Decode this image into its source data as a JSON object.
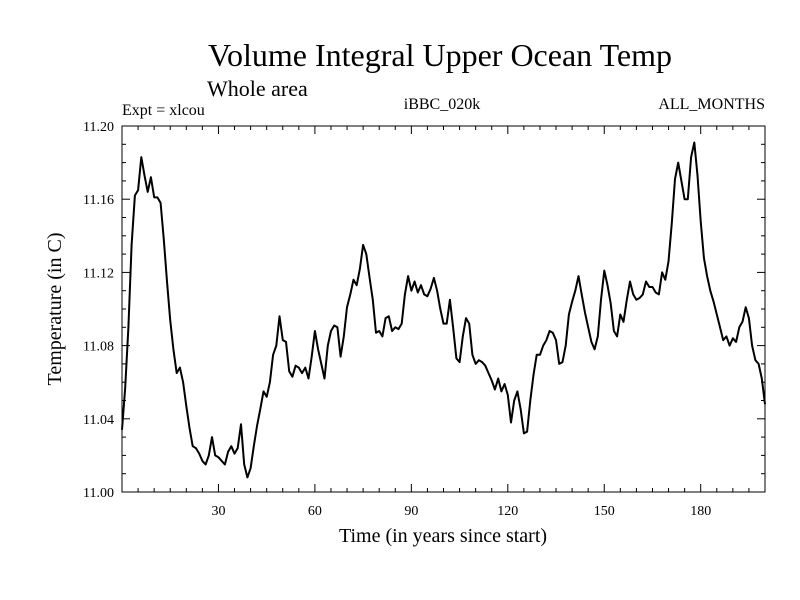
{
  "chart_data": {
    "type": "line",
    "title": "Volume Integral Upper Ocean Temp",
    "subtitle": "Whole area",
    "annotations": {
      "left": "Expt = xlcou",
      "center": "iBBC_020k",
      "right": "ALL_MONTHS"
    },
    "xlabel": "Time (in years since start)",
    "ylabel": "Temperature (in C)",
    "xlim": [
      0,
      200
    ],
    "ylim": [
      11.0,
      11.2
    ],
    "x_major_ticks": [
      30,
      60,
      90,
      120,
      150,
      180
    ],
    "x_tick_labels": [
      "30",
      "60",
      "90",
      "120",
      "150",
      "180"
    ],
    "x_minor_step": 5,
    "y_major_ticks": [
      11.0,
      11.04,
      11.08,
      11.12,
      11.16,
      11.2
    ],
    "y_tick_labels": [
      "11.00",
      "11.04",
      "11.08",
      "11.12",
      "11.16",
      "11.20"
    ],
    "y_minor_step": 0.01,
    "grid": false,
    "legend": "none",
    "series": [
      {
        "name": "Volume Integral Upper Ocean Temp",
        "x": [
          0,
          1,
          2,
          3,
          4,
          5,
          6,
          7,
          8,
          9,
          10,
          11,
          12,
          13,
          14,
          15,
          16,
          17,
          18,
          19,
          20,
          21,
          22,
          23,
          24,
          25,
          26,
          27,
          28,
          29,
          30,
          31,
          32,
          33,
          34,
          35,
          36,
          37,
          38,
          39,
          40,
          41,
          42,
          43,
          44,
          45,
          46,
          47,
          48,
          49,
          50,
          51,
          52,
          53,
          54,
          55,
          56,
          57,
          58,
          59,
          60,
          61,
          62,
          63,
          64,
          65,
          66,
          67,
          68,
          69,
          70,
          71,
          72,
          73,
          74,
          75,
          76,
          77,
          78,
          79,
          80,
          81,
          82,
          83,
          84,
          85,
          86,
          87,
          88,
          89,
          90,
          91,
          92,
          93,
          94,
          95,
          96,
          97,
          98,
          99,
          100,
          101,
          102,
          103,
          104,
          105,
          106,
          107,
          108,
          109,
          110,
          111,
          112,
          113,
          114,
          115,
          116,
          117,
          118,
          119,
          120,
          121,
          122,
          123,
          124,
          125,
          126,
          127,
          128,
          129,
          130,
          131,
          132,
          133,
          134,
          135,
          136,
          137,
          138,
          139,
          140,
          141,
          142,
          143,
          144,
          145,
          146,
          147,
          148,
          149,
          150,
          151,
          152,
          153,
          154,
          155,
          156,
          157,
          158,
          159,
          160,
          161,
          162,
          163,
          164,
          165,
          166,
          167,
          168,
          169,
          170,
          171,
          172,
          173,
          174,
          175,
          176,
          177,
          178,
          179,
          180,
          181,
          182,
          183,
          184,
          185,
          186,
          187,
          188,
          189,
          190,
          191,
          192,
          193,
          194,
          195,
          196,
          197,
          198,
          199,
          200
        ],
        "values": [
          11.034,
          11.057,
          11.09,
          11.135,
          11.162,
          11.165,
          11.183,
          11.173,
          11.164,
          11.172,
          11.161,
          11.161,
          11.158,
          11.138,
          11.115,
          11.094,
          11.078,
          11.065,
          11.068,
          11.06,
          11.047,
          11.035,
          11.025,
          11.024,
          11.021,
          11.017,
          11.015,
          11.02,
          11.03,
          11.02,
          11.019,
          11.017,
          11.015,
          11.022,
          11.025,
          11.021,
          11.024,
          11.037,
          11.015,
          11.008,
          11.013,
          11.025,
          11.036,
          11.045,
          11.055,
          11.052,
          11.06,
          11.075,
          11.08,
          11.096,
          11.083,
          11.082,
          11.066,
          11.063,
          11.069,
          11.068,
          11.065,
          11.068,
          11.062,
          11.074,
          11.088,
          11.078,
          11.07,
          11.062,
          11.08,
          11.088,
          11.091,
          11.09,
          11.074,
          11.085,
          11.101,
          11.108,
          11.116,
          11.113,
          11.122,
          11.135,
          11.13,
          11.117,
          11.105,
          11.087,
          11.088,
          11.085,
          11.095,
          11.096,
          11.088,
          11.09,
          11.089,
          11.092,
          11.108,
          11.118,
          11.11,
          11.115,
          11.109,
          11.113,
          11.108,
          11.107,
          11.111,
          11.117,
          11.11,
          11.1,
          11.092,
          11.092,
          11.105,
          11.09,
          11.073,
          11.071,
          11.085,
          11.095,
          11.092,
          11.075,
          11.07,
          11.072,
          11.071,
          11.069,
          11.065,
          11.061,
          11.056,
          11.062,
          11.055,
          11.059,
          11.053,
          11.038,
          11.05,
          11.055,
          11.045,
          11.032,
          11.033,
          11.05,
          11.064,
          11.075,
          11.075,
          11.08,
          11.083,
          11.088,
          11.087,
          11.083,
          11.07,
          11.071,
          11.08,
          11.097,
          11.104,
          11.11,
          11.118,
          11.108,
          11.098,
          11.09,
          11.082,
          11.078,
          11.085,
          11.105,
          11.121,
          11.113,
          11.103,
          11.088,
          11.085,
          11.097,
          11.093,
          11.105,
          11.115,
          11.108,
          11.105,
          11.106,
          11.108,
          11.115,
          11.112,
          11.112,
          11.109,
          11.108,
          11.12,
          11.116,
          11.126,
          11.147,
          11.171,
          11.18,
          11.17,
          11.16,
          11.16,
          11.183,
          11.191,
          11.173,
          11.148,
          11.128,
          11.118,
          11.11,
          11.104,
          11.097,
          11.09,
          11.083,
          11.085,
          11.08,
          11.084,
          11.082,
          11.09,
          11.093,
          11.101,
          11.095,
          11.08,
          11.072,
          11.07,
          11.062,
          11.048
        ]
      }
    ]
  }
}
